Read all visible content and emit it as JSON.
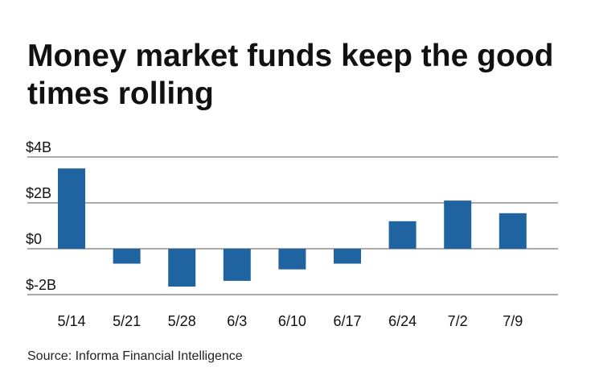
{
  "title": "Money market funds keep the good times rolling",
  "source": "Source: Informa Financial Intelligence",
  "colors": {
    "bar": "#1f64a0",
    "grid": "#555555"
  },
  "chart_data": {
    "type": "bar",
    "title": "Money market funds keep the good times rolling",
    "xlabel": "",
    "ylabel": "",
    "unit": "$B",
    "ylim": [
      -2,
      4
    ],
    "yticks": [
      -2,
      0,
      2,
      4
    ],
    "ytick_labels": [
      "$-2B",
      "$0",
      "$2B",
      "$4B"
    ],
    "categories": [
      "5/14",
      "5/21",
      "5/28",
      "6/3",
      "6/10",
      "6/17",
      "6/24",
      "7/2",
      "7/9"
    ],
    "values": [
      3.5,
      -0.65,
      -1.65,
      -1.4,
      -0.9,
      -0.65,
      1.2,
      2.1,
      1.55
    ],
    "grid": true
  }
}
